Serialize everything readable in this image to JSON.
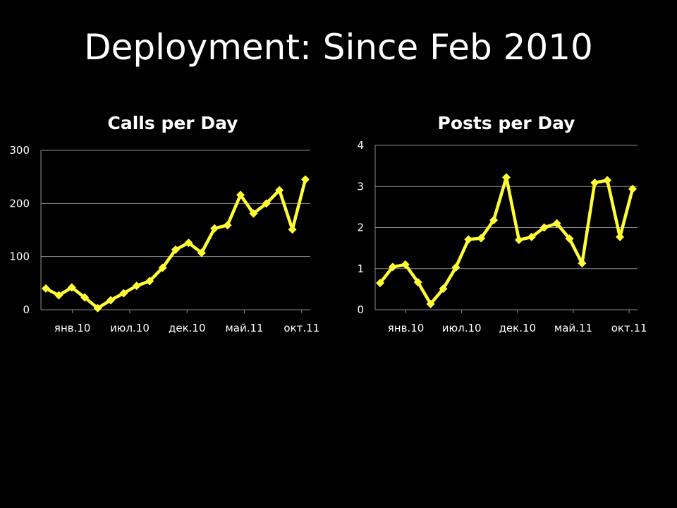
{
  "slide": {
    "title": "Deployment:  Since Feb 2010"
  },
  "colors": {
    "background": "#000000",
    "series": "#FFFF33",
    "grid": "#8C8C8C",
    "text": "#FFFFFF"
  },
  "chart_data": [
    {
      "type": "line",
      "title": "Calls per Day",
      "xlabel": "",
      "ylabel": "",
      "x_ticks": [
        "янв.10",
        "июл.10",
        "дек.10",
        "май.11",
        "окт.11"
      ],
      "y_ticks": [
        0,
        100,
        200,
        300
      ],
      "ylim": [
        0,
        300
      ],
      "grid": true,
      "legend": "none",
      "marker": "diamond",
      "series": [
        {
          "values": [
            40,
            27,
            42,
            23,
            3,
            18,
            31,
            45,
            54,
            79,
            113,
            126,
            107,
            153,
            159,
            216,
            181,
            200,
            225,
            151,
            245
          ]
        }
      ]
    },
    {
      "type": "line",
      "title": "Posts per Day",
      "xlabel": "",
      "ylabel": "",
      "x_ticks": [
        "янв.10",
        "июл.10",
        "дек.10",
        "май.11",
        "окт.11"
      ],
      "y_ticks": [
        0,
        1,
        2,
        3,
        4
      ],
      "ylim": [
        0,
        4
      ],
      "grid": true,
      "legend": "none",
      "marker": "diamond",
      "series": [
        {
          "values": [
            0.65,
            1.04,
            1.1,
            0.67,
            0.14,
            0.51,
            1.03,
            1.71,
            1.74,
            2.18,
            3.22,
            1.7,
            1.77,
            2.0,
            2.1,
            1.73,
            1.13,
            3.09,
            3.15,
            1.77,
            2.94
          ]
        }
      ]
    }
  ]
}
